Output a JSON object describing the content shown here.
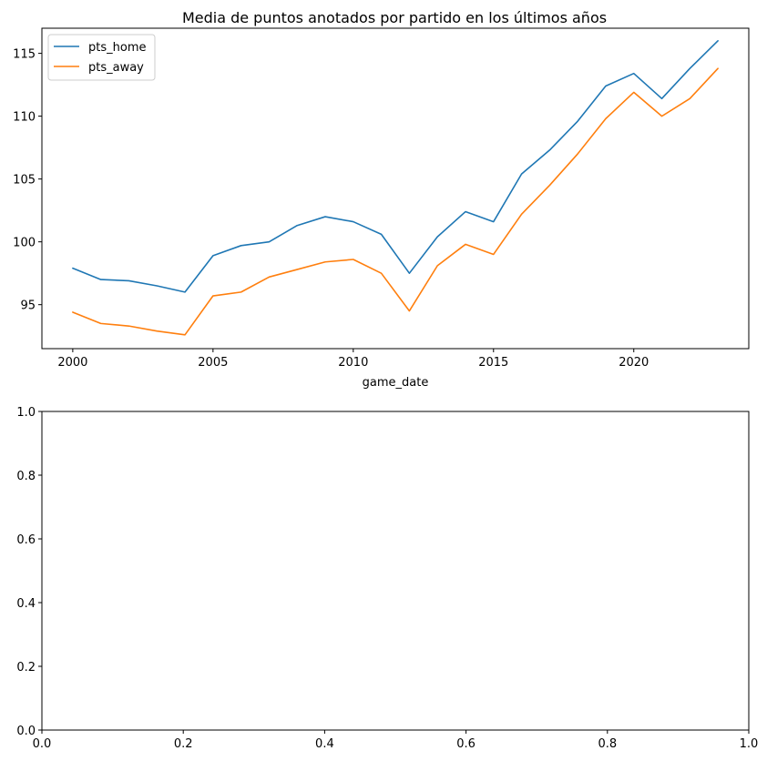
{
  "chart_data": [
    {
      "type": "line",
      "title": "Media de puntos anotados por partido en los últimos años",
      "xlabel": "game_date",
      "ylabel": "",
      "xlim": [
        1998.9,
        2024.1
      ],
      "ylim": [
        91.5,
        117.0
      ],
      "xticks": [
        2000,
        2005,
        2010,
        2015,
        2020
      ],
      "yticks": [
        95,
        100,
        105,
        110,
        115
      ],
      "grid": false,
      "legend_position": "upper-left",
      "x": [
        2000,
        2001,
        2002,
        2003,
        2004,
        2005,
        2006,
        2007,
        2008,
        2009,
        2010,
        2011,
        2012,
        2013,
        2014,
        2015,
        2016,
        2017,
        2018,
        2019,
        2020,
        2021,
        2022,
        2023
      ],
      "series": [
        {
          "name": "pts_home",
          "color": "#1f77b4",
          "values": [
            97.9,
            97.0,
            96.9,
            96.5,
            96.0,
            98.9,
            99.7,
            100.0,
            101.3,
            102.0,
            101.6,
            100.6,
            97.5,
            100.4,
            102.4,
            101.6,
            105.4,
            107.3,
            109.6,
            112.4,
            113.4,
            111.4,
            113.8,
            116.0
          ]
        },
        {
          "name": "pts_away",
          "color": "#ff7f0e",
          "values": [
            94.4,
            93.5,
            93.3,
            92.9,
            92.6,
            95.7,
            96.0,
            97.2,
            97.8,
            98.4,
            98.6,
            97.5,
            94.5,
            98.1,
            99.8,
            99.0,
            102.2,
            104.5,
            107.0,
            109.8,
            111.9,
            110.0,
            111.4,
            113.8
          ]
        }
      ]
    },
    {
      "type": "line",
      "title": "",
      "xlabel": "",
      "ylabel": "",
      "xlim": [
        0.0,
        1.0
      ],
      "ylim": [
        0.0,
        1.0
      ],
      "xticks": [
        0.0,
        0.2,
        0.4,
        0.6,
        0.8,
        1.0
      ],
      "yticks": [
        0.0,
        0.2,
        0.4,
        0.6,
        0.8,
        1.0
      ],
      "xtick_labels": [
        "0.0",
        "0.2",
        "0.4",
        "0.6",
        "0.8",
        "1.0"
      ],
      "ytick_labels": [
        "0.0",
        "0.2",
        "0.4",
        "0.6",
        "0.8",
        "1.0"
      ],
      "grid": false,
      "series": []
    }
  ]
}
